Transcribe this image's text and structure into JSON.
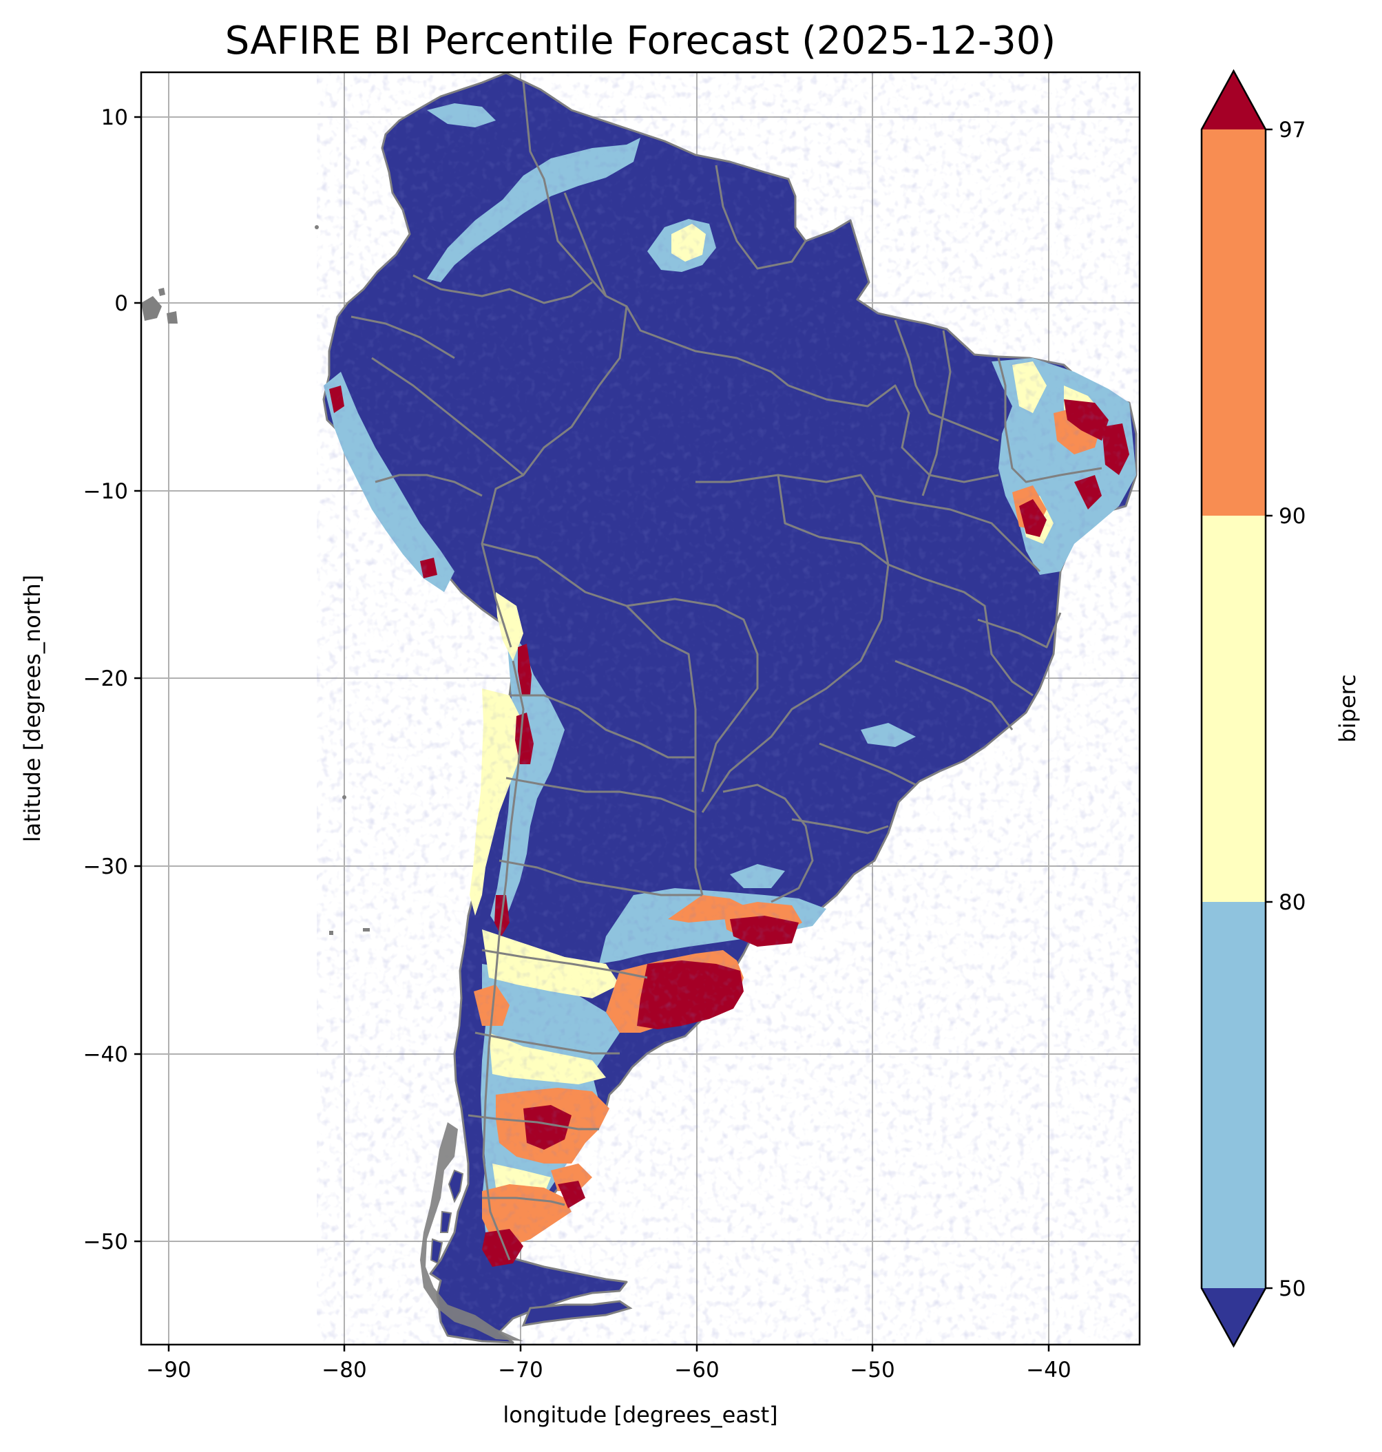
{
  "title": "SAFIRE BI Percentile Forecast (2025-12-30)",
  "x_axis": {
    "label": "longitude [degrees_east]",
    "ticks": [
      "−90",
      "−80",
      "−70",
      "−60",
      "−50",
      "−40"
    ],
    "tick_values": [
      -90,
      -80,
      -70,
      -60,
      -50,
      -40
    ],
    "range": [
      -91.5,
      -35.0
    ]
  },
  "y_axis": {
    "label": "latitude [degrees_north]",
    "ticks": [
      "10",
      "0",
      "−10",
      "−20",
      "−30",
      "−40",
      "−50"
    ],
    "tick_values": [
      10,
      0,
      -10,
      -20,
      -30,
      -40,
      -50
    ],
    "range": [
      -55.8,
      12.4
    ]
  },
  "grid": true,
  "colorbar": {
    "label": "biperc",
    "ticks": [
      "50",
      "80",
      "90",
      "97"
    ],
    "bins": [
      {
        "range": "<50",
        "color": "#313695"
      },
      {
        "range": "50-80",
        "color": "#8fc3de"
      },
      {
        "range": "80-90",
        "color": "#ffffbf"
      },
      {
        "range": "90-97",
        "color": "#f88d52"
      },
      {
        "range": ">97",
        "color": "#a50026"
      }
    ],
    "extend": "both"
  },
  "colors": {
    "boundary": "#808080",
    "grid": "#b0b0b0"
  }
}
